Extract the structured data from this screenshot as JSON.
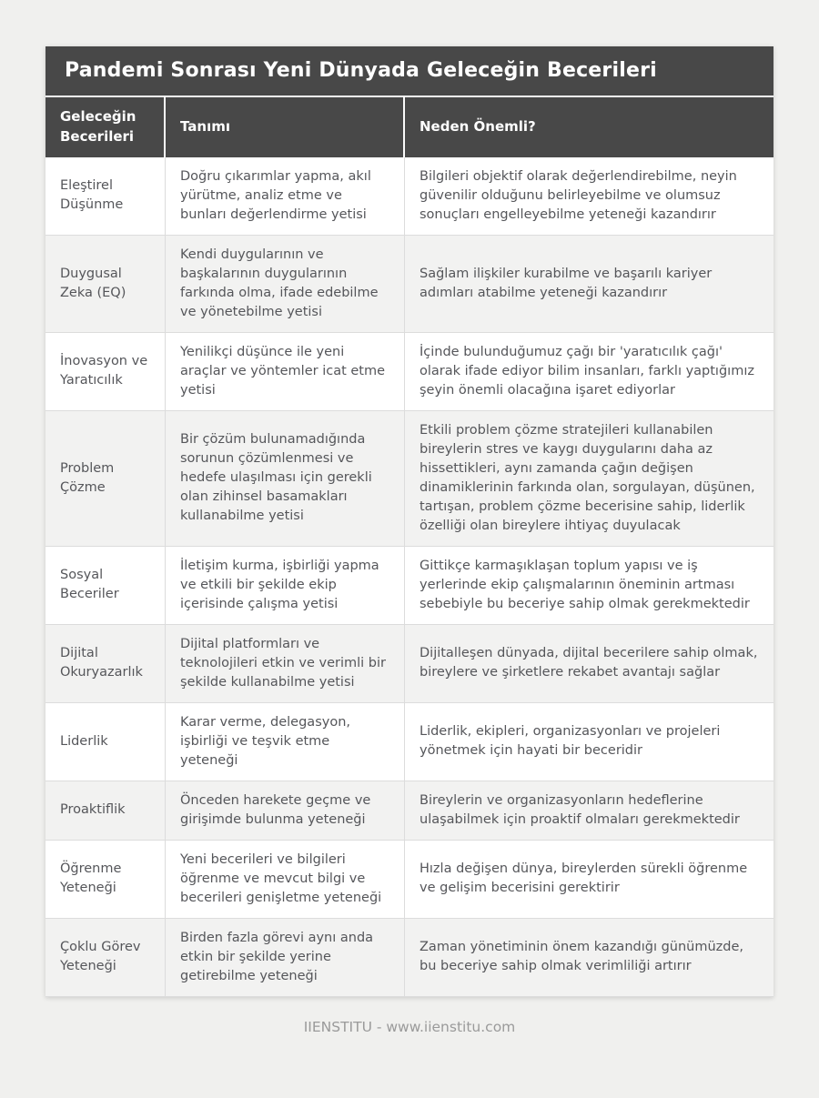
{
  "title": "Pandemi Sonrası Yeni Dünyada Geleceğin Becerileri",
  "table": {
    "headers": [
      "Geleceğin Becerileri",
      "Tanımı",
      "Neden Önemli?"
    ],
    "rows": [
      {
        "skill": "Eleştirel Düşünme",
        "definition": "Doğru çıkarımlar yapma, akıl yürütme, analiz etme ve bunları değerlendirme yetisi",
        "importance": "Bilgileri objektif olarak değerlendirebilme, neyin güvenilir olduğunu belirleyebilme ve olumsuz sonuçları engelleyebilme yeteneği kazandırır"
      },
      {
        "skill": "Duygusal Zeka (EQ)",
        "definition": "Kendi duygularının ve başkalarının duygularının farkında olma, ifade edebilme ve yönetebilme yetisi",
        "importance": "Sağlam ilişkiler kurabilme ve başarılı kariyer adımları atabilme yeteneği kazandırır"
      },
      {
        "skill": "İnovasyon ve Yaratıcılık",
        "definition": "Yenilikçi düşünce ile yeni araçlar ve yöntemler icat etme yetisi",
        "importance": "İçinde bulunduğumuz çağı bir 'yaratıcılık çağı' olarak ifade ediyor bilim insanları, farklı yaptığımız şeyin önemli olacağına işaret ediyorlar"
      },
      {
        "skill": "Problem Çözme",
        "definition": "Bir çözüm bulunamadığında sorunun çözümlenmesi ve hedefe ulaşılması için gerekli olan zihinsel basamakları kullanabilme yetisi",
        "importance": "Etkili problem çözme stratejileri kullanabilen bireylerin stres ve kaygı duygularını daha az hissettikleri, aynı zamanda çağın değişen dinamiklerinin farkında olan, sorgulayan, düşünen, tartışan, problem çözme becerisine sahip, liderlik özelliği olan bireylere ihtiyaç duyulacak"
      },
      {
        "skill": "Sosyal Beceriler",
        "definition": "İletişim kurma, işbirliği yapma ve etkili bir şekilde ekip içerisinde çalışma yetisi",
        "importance": "Gittikçe karmaşıklaşan toplum yapısı ve iş yerlerinde ekip çalışmalarının öneminin artması sebebiyle bu beceriye sahip olmak gerekmektedir"
      },
      {
        "skill": "Dijital Okuryazarlık",
        "definition": "Dijital platformları ve teknolojileri etkin ve verimli bir şekilde kullanabilme yetisi",
        "importance": "Dijitalleşen dünyada, dijital becerilere sahip olmak, bireylere ve şirketlere rekabet avantajı sağlar"
      },
      {
        "skill": "Liderlik",
        "definition": "Karar verme, delegasyon, işbirliği ve teşvik etme yeteneği",
        "importance": "Liderlik, ekipleri, organizasyonları ve projeleri yönetmek için hayati bir beceridir"
      },
      {
        "skill": "Proaktiflik",
        "definition": "Önceden harekete geçme ve girişimde bulunma yeteneği",
        "importance": "Bireylerin ve organizasyonların hedeflerine ulaşabilmek için proaktif olmaları gerekmektedir"
      },
      {
        "skill": "Öğrenme Yeteneği",
        "definition": "Yeni becerileri ve bilgileri öğrenme ve mevcut bilgi ve becerileri genişletme yeteneği",
        "importance": "Hızla değişen dünya, bireylerden sürekli öğrenme ve gelişim becerisini gerektirir"
      },
      {
        "skill": "Çoklu Görev Yeteneği",
        "definition": "Birden fazla görevi aynı anda etkin bir şekilde yerine getirebilme yeteneği",
        "importance": "Zaman yönetiminin önem kazandığı günümüzde, bu beceriye sahip olmak verimliliği artırır"
      }
    ]
  },
  "footer": {
    "text": "IIENSTITU - www.iienstitu.com"
  },
  "colors": {
    "page_bg": "#f0f0ee",
    "header_bg": "#484848",
    "header_text": "#ffffff",
    "row_alt_bg": "#f2f2f1",
    "body_text": "#55565a",
    "border": "#dcdcdc",
    "footer_text": "#9a9a9a"
  }
}
